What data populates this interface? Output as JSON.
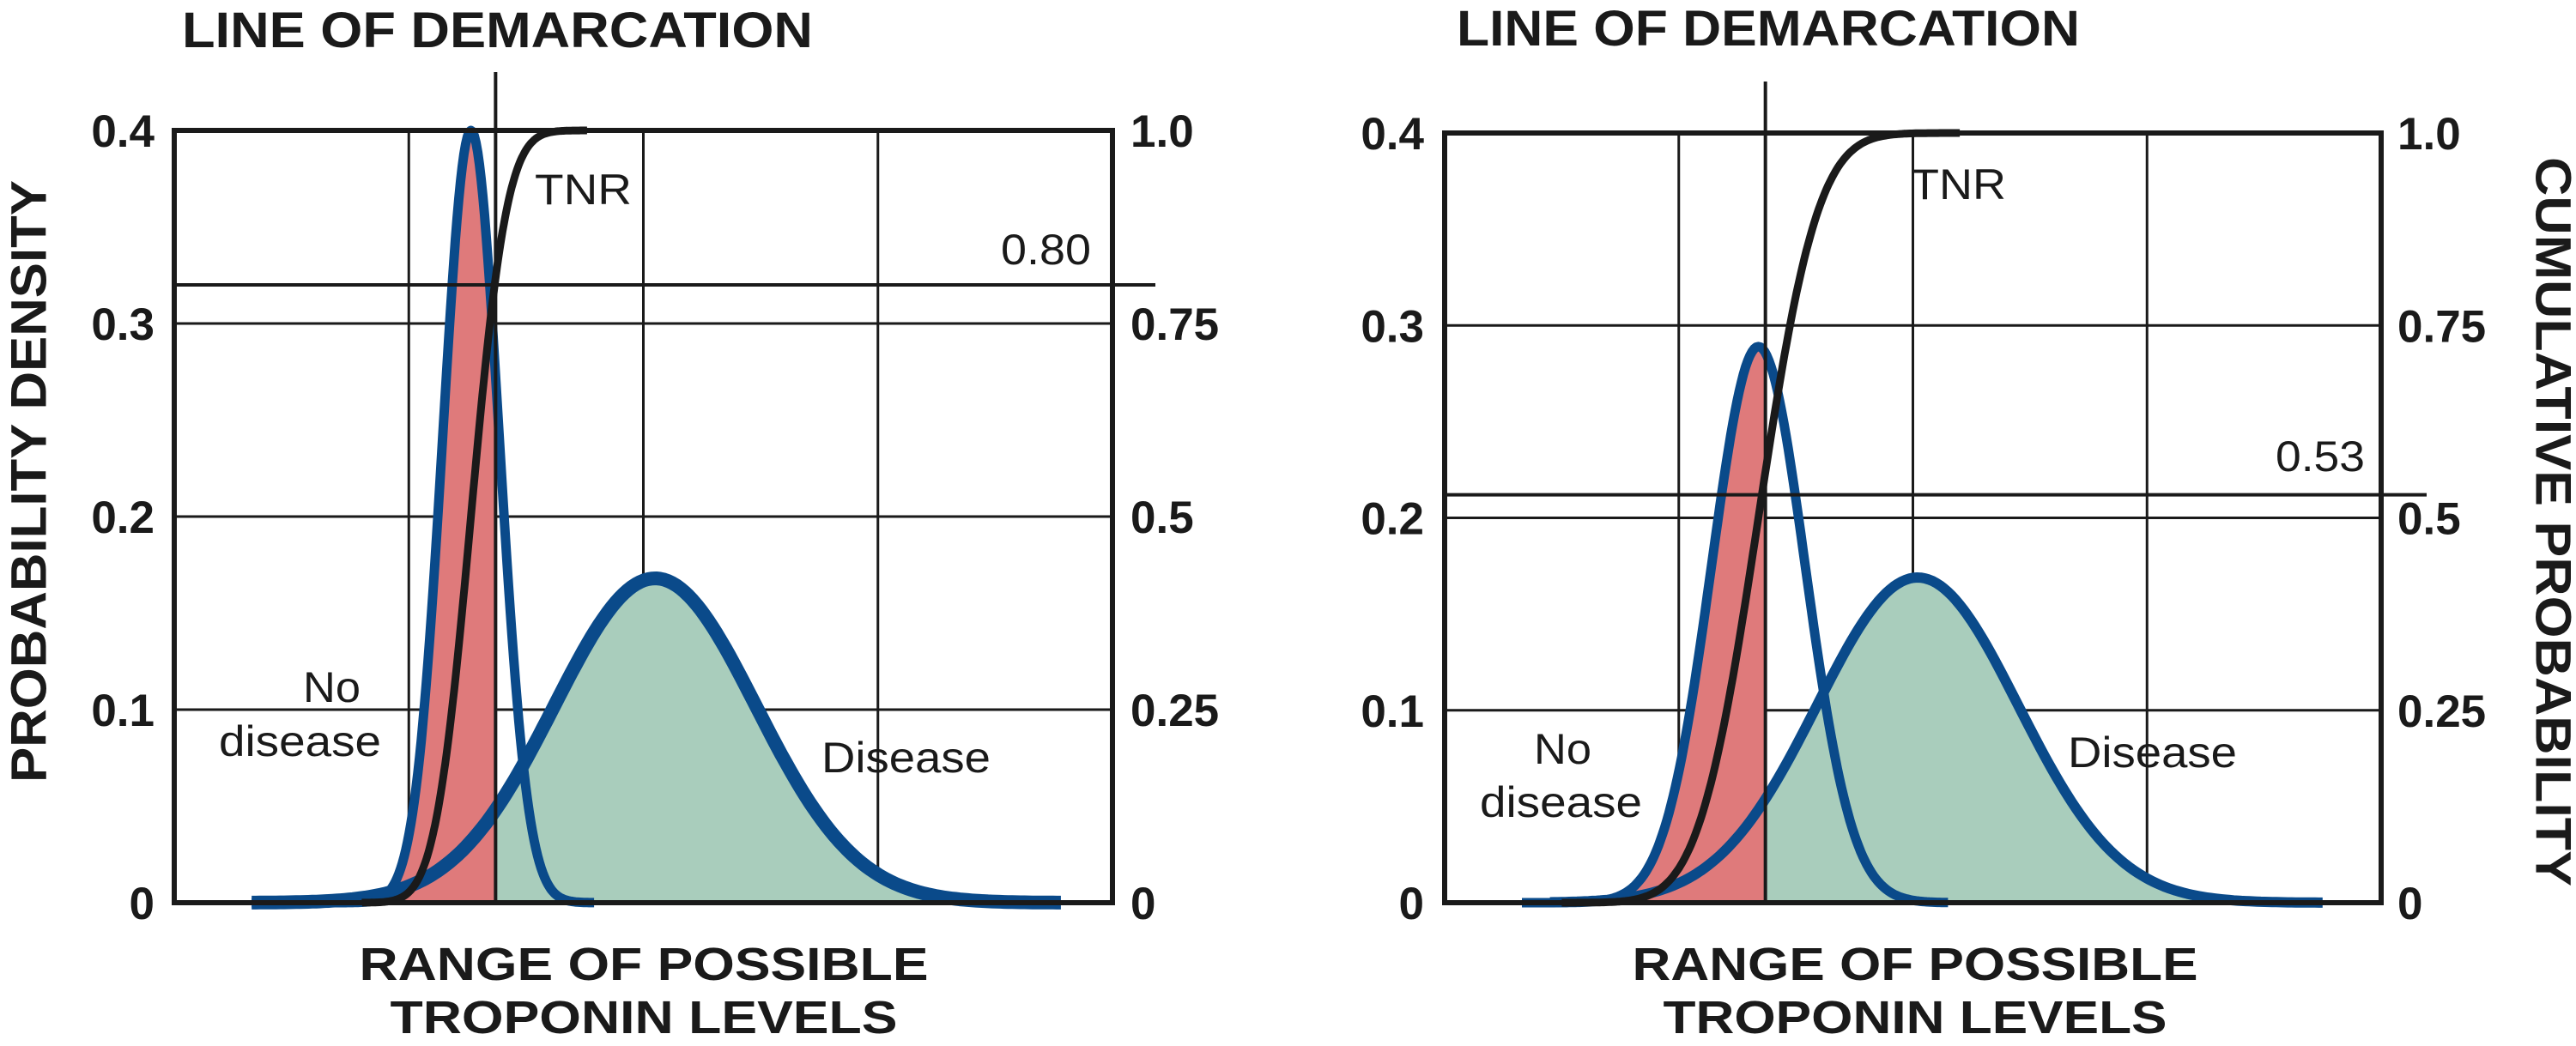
{
  "colors": {
    "no_disease_fill": "#df7a7b",
    "disease_fill": "#a9cdbc",
    "density_curve": "#0a4a8a",
    "tnr_curve": "#1a1a1a",
    "axes": "#1a1a1a"
  },
  "chart_data": [
    {
      "type": "line",
      "title": "LINE OF DEMARCATION",
      "xlabel": [
        "RANGE OF POSSIBLE",
        "TROPONIN LEVELS"
      ],
      "ylabel": "PROBABILITY DENSITY",
      "y2label": "",
      "xlim": [
        0,
        4
      ],
      "ylim": [
        0,
        0.4
      ],
      "y2lim": [
        0,
        1
      ],
      "grid": true,
      "yticks": [
        {
          "v": 0.4,
          "label": "0.4"
        },
        {
          "v": 0.3,
          "label": "0.3"
        },
        {
          "v": 0.2,
          "label": "0.2"
        },
        {
          "v": 0.1,
          "label": "0.1"
        },
        {
          "v": 0,
          "label": "0"
        }
      ],
      "y2ticks": [
        {
          "v": 1.0,
          "label": "1.0"
        },
        {
          "v": 0.75,
          "label": "0.75"
        },
        {
          "v": 0.5,
          "label": "0.5"
        },
        {
          "v": 0.25,
          "label": "0.25"
        },
        {
          "v": 0,
          "label": "0"
        }
      ],
      "demarcation_x": 1.37,
      "tnr_at_demarcation": 0.8,
      "tnr_value_label": "0.80",
      "series": [
        {
          "name": "No disease",
          "kind": "density",
          "mean": 1.265,
          "sd": 0.12,
          "peak": 0.4,
          "x_range": [
            0.33,
            1.79
          ],
          "fill": "left-of-demarcation"
        },
        {
          "name": "Disease",
          "kind": "density",
          "mean": 2.05,
          "sd": 0.43,
          "peak": 0.168,
          "x_range": [
            0.33,
            3.78
          ],
          "fill": "right-of-demarcation"
        },
        {
          "name": "TNR",
          "kind": "cumulative",
          "of": "No disease",
          "x_range": [
            0.8,
            1.76
          ]
        }
      ],
      "annotations": {
        "tnr": "TNR",
        "no_disease_1": "No",
        "no_disease_2": "disease",
        "disease": "Disease"
      }
    },
    {
      "type": "line",
      "title": "LINE OF DEMARCATION",
      "xlabel": [
        "RANGE OF POSSIBLE",
        "TROPONIN LEVELS"
      ],
      "ylabel": "",
      "y2label": "CUMULATIVE PROBABILITY",
      "xlim": [
        0,
        4
      ],
      "ylim": [
        0,
        0.4
      ],
      "y2lim": [
        0,
        1
      ],
      "grid": true,
      "yticks": [
        {
          "v": 0.4,
          "label": "0.4"
        },
        {
          "v": 0.3,
          "label": "0.3"
        },
        {
          "v": 0.2,
          "label": "0.2"
        },
        {
          "v": 0.1,
          "label": "0.1"
        },
        {
          "v": 0,
          "label": "0"
        }
      ],
      "y2ticks": [
        {
          "v": 1.0,
          "label": "1.0"
        },
        {
          "v": 0.75,
          "label": "0.75"
        },
        {
          "v": 0.5,
          "label": "0.5"
        },
        {
          "v": 0.25,
          "label": "0.25"
        },
        {
          "v": 0,
          "label": "0"
        }
      ],
      "demarcation_x": 1.37,
      "tnr_at_demarcation": 0.53,
      "tnr_value_label": "0.53",
      "series": [
        {
          "name": "No disease",
          "kind": "density",
          "mean": 1.34,
          "sd": 0.2,
          "peak": 0.289,
          "x_range": [
            0.33,
            2.15
          ],
          "fill": "left-of-demarcation"
        },
        {
          "name": "Disease",
          "kind": "density",
          "mean": 2.02,
          "sd": 0.43,
          "peak": 0.169,
          "x_range": [
            0.45,
            3.75
          ],
          "fill": "right-of-demarcation"
        },
        {
          "name": "TNR",
          "kind": "cumulative",
          "of": "No disease",
          "x_range": [
            0.5,
            2.2
          ]
        }
      ],
      "annotations": {
        "tnr": "TNR",
        "no_disease_1": "No",
        "no_disease_2": "disease",
        "disease": "Disease"
      }
    }
  ]
}
